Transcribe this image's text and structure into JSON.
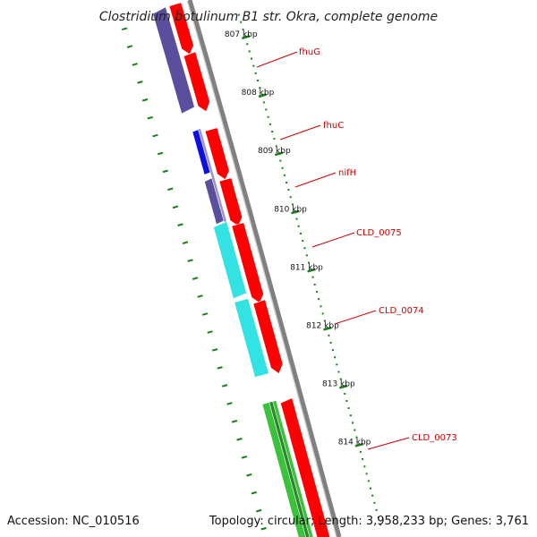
{
  "title": "Clostridium botulinum B1 str. Okra, complete genome",
  "footer": {
    "accession": "Accession: NC_010516",
    "summary": "Topology: circular; Length: 3,958,233 bp; Genes: 3,761"
  },
  "colors": {
    "background": "#ffffff",
    "backbone": "#808080",
    "tick": "#1a7f1a",
    "label": "#cc0000",
    "orf": "#ff0000",
    "fhuG": "#5a4f9c",
    "fhuC": "#1010dd",
    "nifH": "#5a4f9c",
    "CLD_0075": "#33e3e3",
    "CLD_0074": "#33e3e3",
    "CLD_0073": "#3cc13c"
  },
  "scale_ticks": [
    {
      "label": "807 kbp"
    },
    {
      "label": "808 kbp"
    },
    {
      "label": "809 kbp"
    },
    {
      "label": "810 kbp"
    },
    {
      "label": "811 kbp"
    },
    {
      "label": "812 kbp"
    },
    {
      "label": "813 kbp"
    },
    {
      "label": "814 kbp"
    }
  ],
  "genes": [
    {
      "name": "fhuG",
      "color_key": "fhuG"
    },
    {
      "name": "fhuC",
      "color_key": "fhuC"
    },
    {
      "name": "nifH",
      "color_key": "nifH"
    },
    {
      "name": "CLD_0075",
      "color_key": "CLD_0075"
    },
    {
      "name": "CLD_0074",
      "color_key": "CLD_0074"
    },
    {
      "name": "CLD_0073",
      "color_key": "CLD_0073"
    }
  ]
}
